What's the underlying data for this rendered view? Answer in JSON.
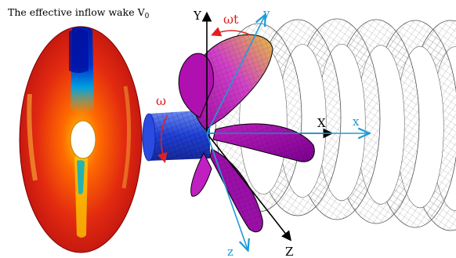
{
  "caption": {
    "text": "The effective inflow wake V",
    "subscript": "0"
  },
  "axes": {
    "global": {
      "x": "X",
      "y": "Y",
      "z": "Z"
    },
    "rotating": {
      "x": "x",
      "y": "y",
      "z": "z"
    }
  },
  "rotation_labels": {
    "omega": "ω",
    "omega_t": "ωt"
  },
  "colors": {
    "global_axes": "#000000",
    "rotating_axes": "#1e9bd7",
    "annotations": "#e02020",
    "shaft": "#2f5ee8",
    "blade_magenta": "#b000b0",
    "blade_yellow": "#e0b43c",
    "wake_mesh": "#9a9a9a"
  },
  "icons": [
    "wake-disc",
    "propeller-blade",
    "shaft",
    "helical-wake-mesh"
  ]
}
